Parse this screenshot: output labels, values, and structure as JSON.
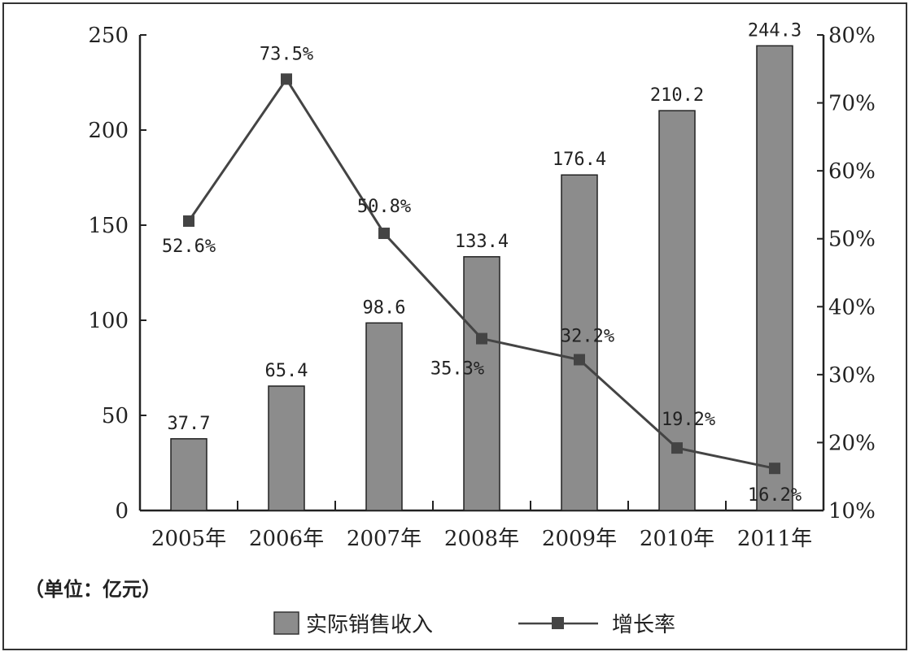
{
  "chart_data": {
    "type": "bar",
    "categories": [
      "2005年",
      "2006年",
      "2007年",
      "2008年",
      "2009年",
      "2010年",
      "2011年"
    ],
    "unit_note": "（单位：亿元）",
    "series": [
      {
        "name": "实际销售收入",
        "type": "bar",
        "axis": "left",
        "values": [
          37.7,
          65.4,
          98.6,
          133.4,
          176.4,
          210.2,
          244.3
        ],
        "labels": [
          "37.7",
          "65.4",
          "98.6",
          "133.4",
          "176.4",
          "210.2",
          "244.3"
        ],
        "color": "#8c8c8c"
      },
      {
        "name": "增长率",
        "type": "line",
        "axis": "right",
        "values": [
          52.6,
          73.5,
          50.8,
          35.3,
          32.2,
          19.2,
          16.2
        ],
        "labels": [
          "52.6%",
          "73.5%",
          "50.8%",
          "35.3%",
          "32.2%",
          "19.2%",
          "16.2%"
        ],
        "color": "#444444"
      }
    ],
    "y_left": {
      "min": 0,
      "max": 250,
      "ticks": [
        "0",
        "50",
        "100",
        "150",
        "200",
        "250"
      ],
      "tick_values": [
        0,
        50,
        100,
        150,
        200,
        250
      ]
    },
    "y_right": {
      "min": 10,
      "max": 80,
      "ticks": [
        "10%",
        "20%",
        "30%",
        "40%",
        "50%",
        "60%",
        "70%",
        "80%"
      ],
      "tick_values": [
        10,
        20,
        30,
        40,
        50,
        60,
        70,
        80
      ]
    },
    "grid": false,
    "legend": "bottom"
  }
}
